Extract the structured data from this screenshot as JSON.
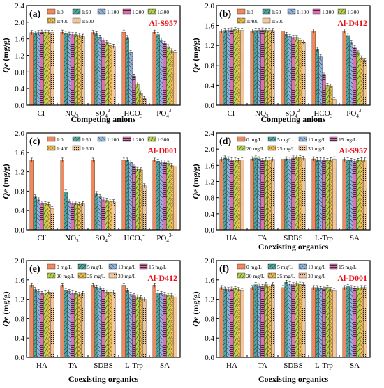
{
  "chart_data": [
    {
      "type": "bar",
      "panel": "(a)",
      "tag": "Al-S957",
      "xlabel": "Competing anions",
      "ylabel": "Qe (mg/g)",
      "ylim": [
        0,
        2.4
      ],
      "yticks": [
        0,
        0.4,
        0.8,
        1.2,
        1.6,
        2.0,
        2.4
      ],
      "legend_cols": 5,
      "categories": [
        {
          "base": "Cl",
          "sup": "-"
        },
        {
          "base": "NO",
          "sub": "3",
          "sup": "-"
        },
        {
          "base": "SO",
          "sub": "4",
          "sup": "2-"
        },
        {
          "base": "HCO",
          "sub": "3",
          "sup": "-"
        },
        {
          "base": "PO",
          "sub": "4",
          "sup": "3-"
        }
      ],
      "series": [
        {
          "name": "1:0",
          "values": [
            1.75,
            1.76,
            1.75,
            1.76,
            1.76
          ]
        },
        {
          "name": "1:50",
          "values": [
            1.74,
            1.73,
            1.72,
            1.63,
            1.7
          ]
        },
        {
          "name": "1:100",
          "values": [
            1.75,
            1.71,
            1.64,
            1.27,
            1.57
          ]
        },
        {
          "name": "1:200",
          "values": [
            1.76,
            1.7,
            1.57,
            0.7,
            1.49
          ]
        },
        {
          "name": "1:300",
          "values": [
            1.76,
            1.7,
            1.51,
            0.51,
            1.41
          ]
        },
        {
          "name": "1:400",
          "values": [
            1.75,
            1.68,
            1.44,
            0.3,
            1.31
          ]
        },
        {
          "name": "1:500",
          "values": [
            1.75,
            1.66,
            1.42,
            0.16,
            1.27
          ]
        }
      ]
    },
    {
      "type": "bar",
      "panel": "(b)",
      "tag": "Al-D412",
      "xlabel": "Competing anions",
      "ylabel": "Qe (mg/g)",
      "ylim": [
        0,
        2.0
      ],
      "yticks": [
        0,
        0.4,
        0.8,
        1.2,
        1.6,
        2.0
      ],
      "legend_cols": 5,
      "categories": [
        {
          "base": "Cl",
          "sup": "-"
        },
        {
          "base": "NO",
          "sub": "3",
          "sup": "-"
        },
        {
          "base": "SO",
          "sub": "4",
          "sup": "2-"
        },
        {
          "base": "HCO",
          "sub": "3",
          "sup": "-"
        },
        {
          "base": "PO",
          "sub": "4",
          "sup": "3-"
        }
      ],
      "series": [
        {
          "name": "1:0",
          "values": [
            1.49,
            1.49,
            1.49,
            1.49,
            1.49
          ]
        },
        {
          "name": "1:50",
          "values": [
            1.5,
            1.5,
            1.42,
            1.12,
            1.4
          ]
        },
        {
          "name": "1:100",
          "values": [
            1.5,
            1.5,
            1.38,
            0.97,
            1.25
          ]
        },
        {
          "name": "1:200",
          "values": [
            1.51,
            1.51,
            1.36,
            0.62,
            1.15
          ]
        },
        {
          "name": "1:300",
          "values": [
            1.52,
            1.5,
            1.36,
            0.4,
            1.05
          ]
        },
        {
          "name": "1:400",
          "values": [
            1.5,
            1.5,
            1.3,
            0.38,
            0.95
          ]
        },
        {
          "name": "1:500",
          "values": [
            1.5,
            1.5,
            1.27,
            0.12,
            0.9
          ]
        }
      ]
    },
    {
      "type": "bar",
      "panel": "(c)",
      "tag": "Al-D001",
      "xlabel": "",
      "ylabel": "Qe (mg/g)",
      "ylim": [
        0,
        2.0
      ],
      "yticks": [
        0,
        0.4,
        0.8,
        1.2,
        1.6,
        2.0
      ],
      "legend_cols": 5,
      "categories": [
        {
          "base": "Cl",
          "sup": "-"
        },
        {
          "base": "NO",
          "sub": "3",
          "sup": "-"
        },
        {
          "base": "SO",
          "sub": "4",
          "sup": "2-"
        },
        {
          "base": "HCO",
          "sub": "3",
          "sup": "-"
        },
        {
          "base": "PO",
          "sub": "4",
          "sup": "3-"
        }
      ],
      "series": [
        {
          "name": "1:0",
          "values": [
            1.44,
            1.44,
            1.44,
            1.44,
            1.44
          ]
        },
        {
          "name": "1:50",
          "values": [
            0.68,
            0.78,
            0.75,
            1.44,
            1.42
          ]
        },
        {
          "name": "1:100",
          "values": [
            0.62,
            0.6,
            0.68,
            1.4,
            1.4
          ]
        },
        {
          "name": "1:200",
          "values": [
            0.55,
            0.55,
            0.62,
            1.32,
            1.4
          ]
        },
        {
          "name": "1:300",
          "values": [
            0.54,
            0.55,
            0.61,
            1.25,
            1.38
          ]
        },
        {
          "name": "1:400",
          "values": [
            0.53,
            0.53,
            0.59,
            1.24,
            1.33
          ]
        },
        {
          "name": "1:500",
          "values": [
            0.44,
            0.54,
            0.58,
            0.91,
            1.32
          ]
        }
      ]
    },
    {
      "type": "bar",
      "panel": "(d)",
      "tag": "Al-S957",
      "xlabel": "Coexisting organics",
      "ylabel": "Qe (mg/g)",
      "ylim": [
        0,
        2.4
      ],
      "yticks": [
        0,
        0.4,
        0.8,
        1.2,
        1.6,
        2.0,
        2.4
      ],
      "legend_cols": 4,
      "categories": [
        {
          "base": "HA"
        },
        {
          "base": "TA"
        },
        {
          "base": "SDBS"
        },
        {
          "base": "L-Trp"
        },
        {
          "base": "SA"
        }
      ],
      "series": [
        {
          "name": "0 mg/L",
          "values": [
            1.75,
            1.76,
            1.75,
            1.76,
            1.75
          ]
        },
        {
          "name": "5 mg/L",
          "values": [
            1.78,
            1.78,
            1.76,
            1.74,
            1.74
          ]
        },
        {
          "name": "10 mg/L",
          "values": [
            1.76,
            1.76,
            1.75,
            1.74,
            1.72
          ]
        },
        {
          "name": "15 mg/L",
          "values": [
            1.74,
            1.72,
            1.78,
            1.73,
            1.7
          ]
        },
        {
          "name": "20 mg/L",
          "values": [
            1.73,
            1.74,
            1.8,
            1.72,
            1.72
          ]
        },
        {
          "name": "25 mg/L",
          "values": [
            1.72,
            1.73,
            1.79,
            1.74,
            1.74
          ]
        },
        {
          "name": "30 mg/L",
          "values": [
            1.73,
            1.75,
            1.77,
            1.76,
            1.73
          ]
        }
      ]
    },
    {
      "type": "bar",
      "panel": "(e)",
      "tag": "Al-D412",
      "xlabel": "Coexisting organics",
      "ylabel": "Qe (mg/g)",
      "ylim": [
        0,
        2.0
      ],
      "yticks": [
        0,
        0.4,
        0.8,
        1.2,
        1.6,
        2.0
      ],
      "legend_cols": 4,
      "categories": [
        {
          "base": "HA"
        },
        {
          "base": "TA"
        },
        {
          "base": "SDBS"
        },
        {
          "base": "L-Trp"
        },
        {
          "base": "SA"
        }
      ],
      "series": [
        {
          "name": "0 mg/L",
          "values": [
            1.49,
            1.49,
            1.49,
            1.49,
            1.49
          ]
        },
        {
          "name": "5 mg/L",
          "values": [
            1.4,
            1.38,
            1.45,
            1.38,
            1.33
          ]
        },
        {
          "name": "10 mg/L",
          "values": [
            1.36,
            1.36,
            1.43,
            1.3,
            1.32
          ]
        },
        {
          "name": "15 mg/L",
          "values": [
            1.32,
            1.33,
            1.38,
            1.27,
            1.3
          ]
        },
        {
          "name": "20 mg/L",
          "values": [
            1.33,
            1.32,
            1.35,
            1.25,
            1.28
          ]
        },
        {
          "name": "25 mg/L",
          "values": [
            1.35,
            1.3,
            1.35,
            1.23,
            1.27
          ]
        },
        {
          "name": "30 mg/L",
          "values": [
            1.34,
            1.32,
            1.34,
            1.2,
            1.25
          ]
        }
      ]
    },
    {
      "type": "bar",
      "panel": "(f)",
      "tag": "Al-D001",
      "xlabel": "Coexisting organics",
      "ylabel": "Qe (mg/g)",
      "ylim": [
        0,
        2.0
      ],
      "yticks": [
        0,
        0.4,
        0.8,
        1.2,
        1.6,
        2.0
      ],
      "legend_cols": 4,
      "categories": [
        {
          "base": "HA"
        },
        {
          "base": "TA"
        },
        {
          "base": "SDBS"
        },
        {
          "base": "L-Trp"
        },
        {
          "base": "SA"
        }
      ],
      "series": [
        {
          "name": "0 mg/L",
          "values": [
            1.44,
            1.44,
            1.44,
            1.44,
            1.44
          ]
        },
        {
          "name": "5 mg/L",
          "values": [
            1.41,
            1.5,
            1.55,
            1.44,
            1.46
          ]
        },
        {
          "name": "10 mg/L",
          "values": [
            1.4,
            1.48,
            1.52,
            1.42,
            1.44
          ]
        },
        {
          "name": "15 mg/L",
          "values": [
            1.41,
            1.46,
            1.5,
            1.41,
            1.42
          ]
        },
        {
          "name": "20 mg/L",
          "values": [
            1.42,
            1.5,
            1.53,
            1.45,
            1.43
          ]
        },
        {
          "name": "25 mg/L",
          "values": [
            1.4,
            1.47,
            1.51,
            1.4,
            1.44
          ]
        },
        {
          "name": "30 mg/L",
          "values": [
            1.38,
            1.5,
            1.5,
            1.38,
            1.44
          ]
        }
      ]
    }
  ],
  "style": {
    "colors": [
      "#f08a5d",
      "#4aa6a0",
      "#8fb4e0",
      "#e26bb5",
      "#b4d34e",
      "#f2c14e",
      "#f6c99b"
    ],
    "tag_color": "#e8101a",
    "axis_color": "#000000"
  }
}
